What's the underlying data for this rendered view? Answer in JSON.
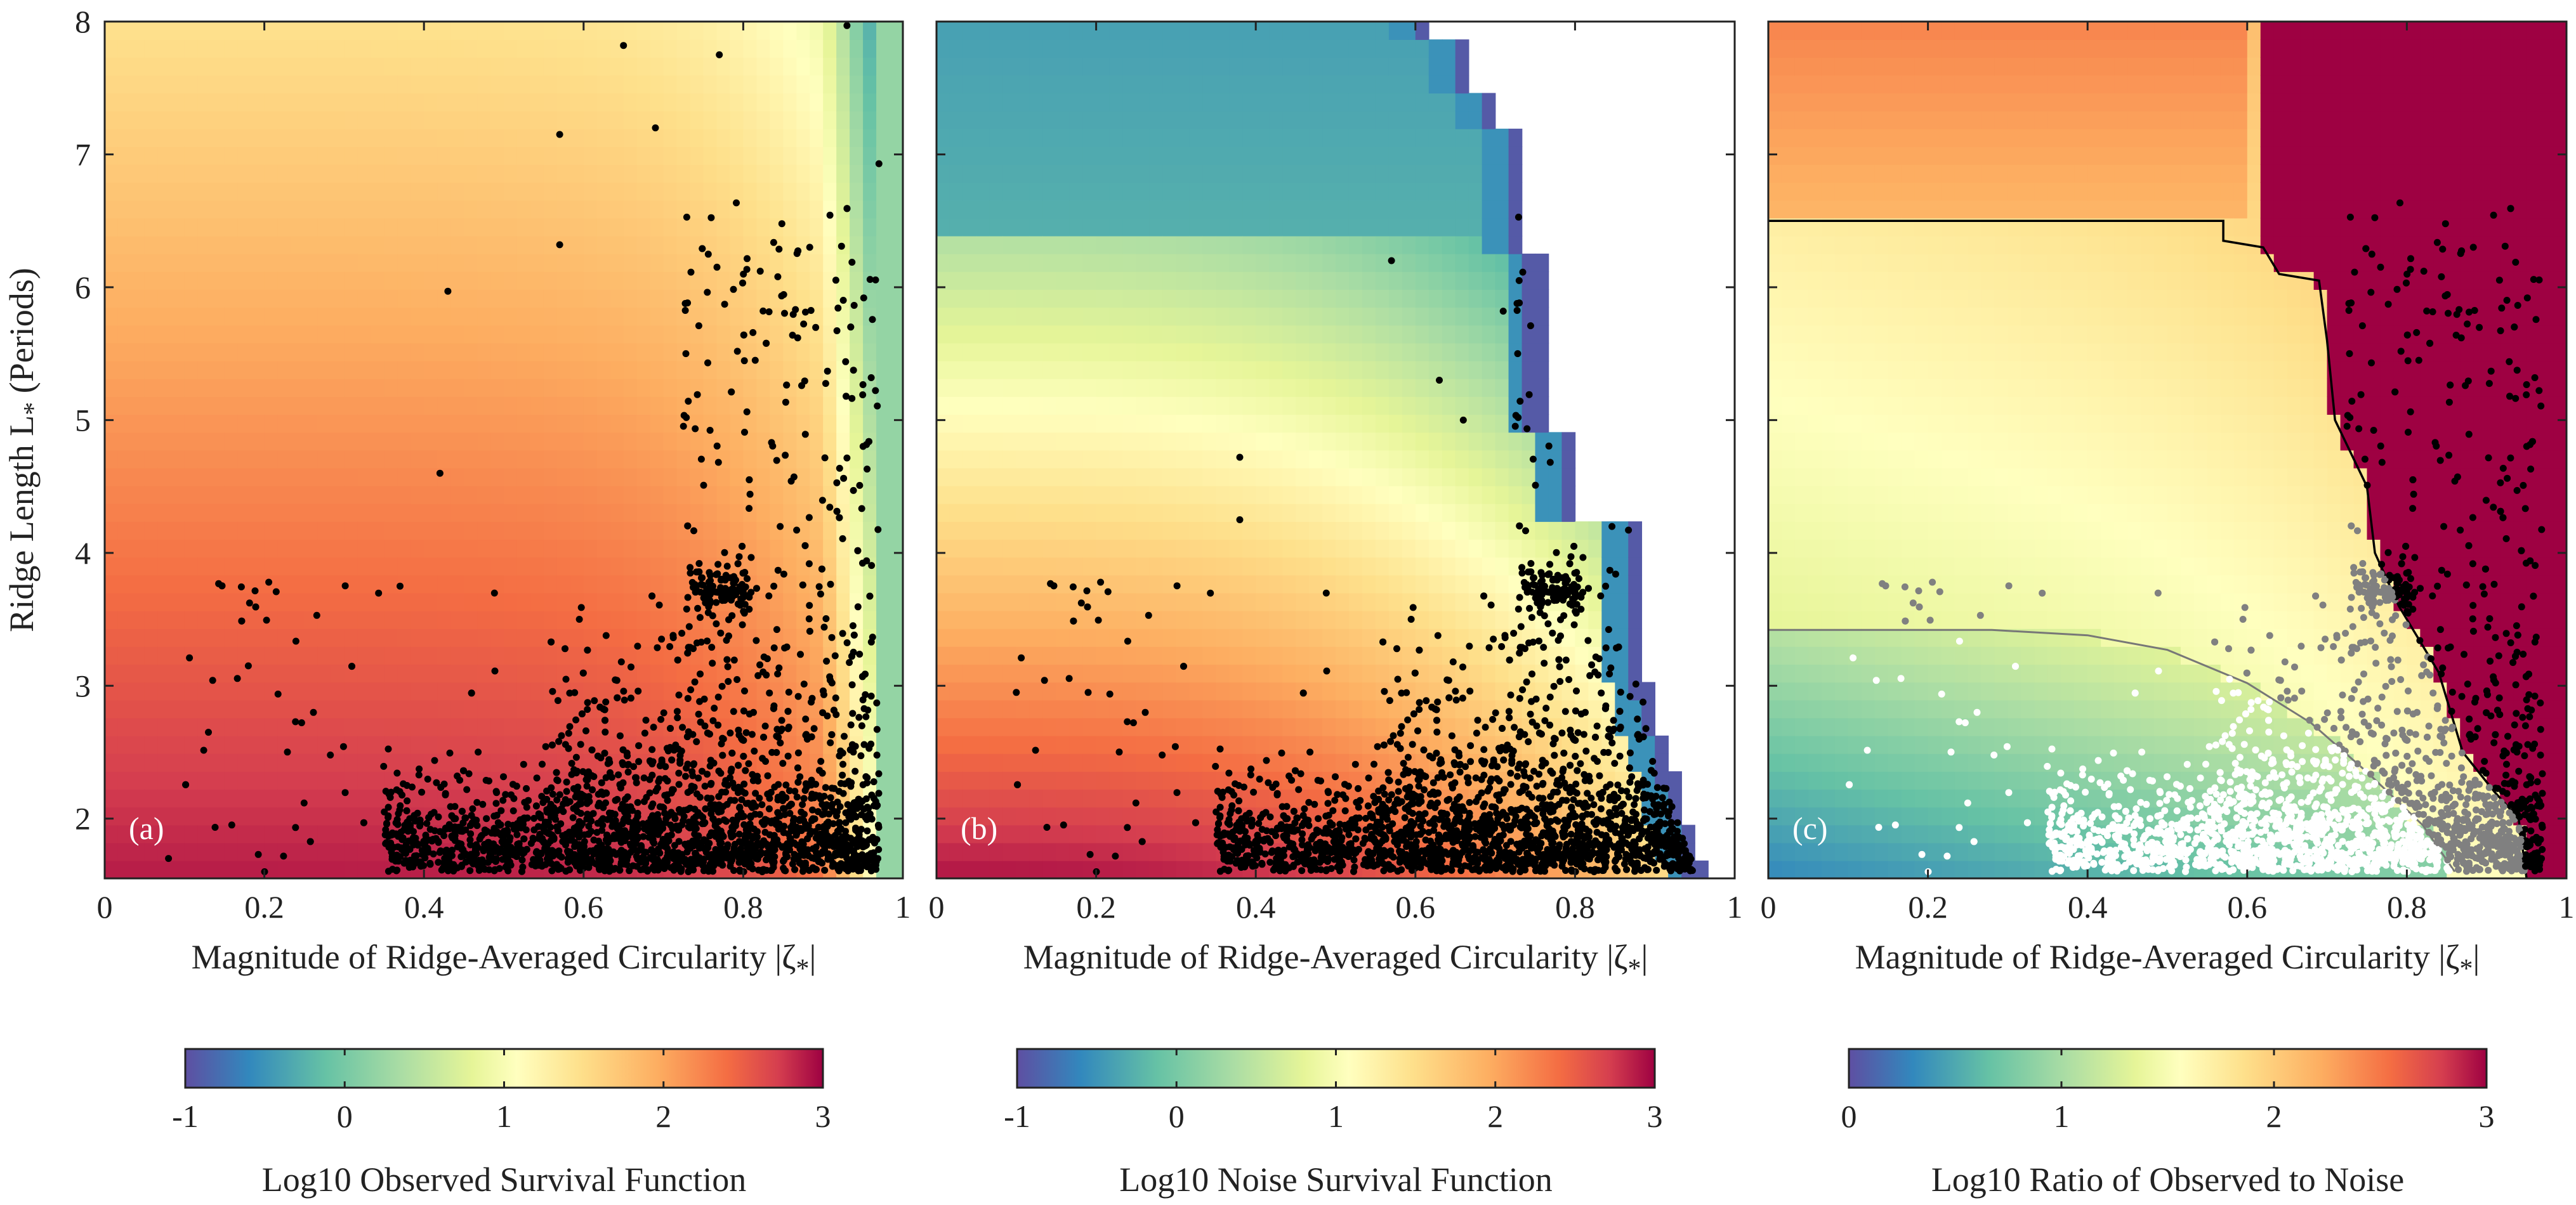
{
  "chart_data": [
    {
      "type": "scatter",
      "panel_label": "(a)",
      "xlabel": "Magnitude of Ridge-Averaged Circularity |ζ",
      "xlabel_sub": "*",
      "xlabel_tail": "|",
      "ylabel": "Ridge Length L",
      "ylabel_sub": "*",
      "ylabel_tail": " (Periods)",
      "xlim": [
        0,
        1
      ],
      "ylim": [
        1.55,
        8
      ],
      "xticks": [
        0,
        0.2,
        0.4,
        0.6,
        0.8,
        1
      ],
      "xtick_labels": [
        "0",
        "0.2",
        "0.4",
        "0.6",
        "0.8",
        "1"
      ],
      "yticks": [
        2,
        3,
        4,
        5,
        6,
        7,
        8
      ],
      "ytick_labels": [
        "2",
        "3",
        "4",
        "5",
        "6",
        "7",
        "8"
      ],
      "background": "Log10 observed survival function (colormap)",
      "colorbar": {
        "label": "Log10 Observed Survival Function",
        "range": [
          -1,
          3
        ],
        "ticks": [
          -1,
          0,
          1,
          2,
          3
        ],
        "tick_labels": [
          "-1",
          "0",
          "1",
          "2",
          "3"
        ]
      },
      "scatter_color": "#000000",
      "notable_points": [
        {
          "x": 0.08,
          "y": 1.7
        },
        {
          "x": 0.13,
          "y": 2.65
        },
        {
          "x": 0.18,
          "y": 3.15
        },
        {
          "x": 0.37,
          "y": 3.75
        },
        {
          "x": 0.42,
          "y": 4.6
        },
        {
          "x": 0.43,
          "y": 5.97
        },
        {
          "x": 0.57,
          "y": 6.32
        },
        {
          "x": 0.57,
          "y": 7.15
        },
        {
          "x": 0.65,
          "y": 7.82
        },
        {
          "x": 0.69,
          "y": 7.2
        },
        {
          "x": 0.77,
          "y": 7.75
        },
        {
          "x": 0.93,
          "y": 7.97
        },
        {
          "x": 0.97,
          "y": 6.93
        },
        {
          "x": 0.78,
          "y": 3.9
        }
      ]
    },
    {
      "type": "scatter",
      "panel_label": "(b)",
      "xlabel": "Magnitude of Ridge-Averaged Circularity |ζ",
      "xlabel_sub": "*",
      "xlabel_tail": "|",
      "xlim": [
        0,
        1
      ],
      "ylim": [
        1.55,
        8
      ],
      "xticks": [
        0,
        0.2,
        0.4,
        0.6,
        0.8,
        1
      ],
      "xtick_labels": [
        "0",
        "0.2",
        "0.4",
        "0.6",
        "0.8",
        "1"
      ],
      "yticks": [
        2,
        3,
        4,
        5,
        6,
        7,
        8
      ],
      "background": "Log10 noise survival function (colormap); undefined region at upper right left blank",
      "colorbar": {
        "label": "Log10 Noise Survival Function",
        "range": [
          -1,
          3
        ],
        "ticks": [
          -1,
          0,
          1,
          2,
          3
        ],
        "tick_labels": [
          "-1",
          "0",
          "1",
          "2",
          "3"
        ]
      },
      "scatter_color": "#000000",
      "notable_points": [
        {
          "x": 0.1,
          "y": 2.95
        },
        {
          "x": 0.19,
          "y": 2.95
        },
        {
          "x": 0.38,
          "y": 4.72
        },
        {
          "x": 0.38,
          "y": 4.25
        },
        {
          "x": 0.57,
          "y": 6.2
        },
        {
          "x": 0.63,
          "y": 5.3
        },
        {
          "x": 0.66,
          "y": 5.0
        },
        {
          "x": 0.71,
          "y": 5.82
        },
        {
          "x": 0.73,
          "y": 6.05
        }
      ]
    },
    {
      "type": "scatter",
      "panel_label": "(c)",
      "xlabel": "Magnitude of Ridge-Averaged Circularity |ζ",
      "xlabel_sub": "*",
      "xlabel_tail": "|",
      "xlim": [
        0,
        1
      ],
      "ylim": [
        1.55,
        8
      ],
      "xticks": [
        0,
        0.2,
        0.4,
        0.6,
        0.8,
        1
      ],
      "xtick_labels": [
        "0",
        "0.2",
        "0.4",
        "0.6",
        "0.8",
        "1"
      ],
      "yticks": [
        2,
        3,
        4,
        5,
        6,
        7,
        8
      ],
      "background": "Log10 ratio of observed to noise (colormap)",
      "colorbar": {
        "label": "Log10 Ratio of Observed to Noise",
        "range": [
          0,
          3
        ],
        "ticks": [
          0,
          1,
          2,
          3
        ],
        "tick_labels": [
          "0",
          "1",
          "2",
          "3"
        ]
      },
      "contours": [
        {
          "color": "#000000",
          "points": [
            [
              0,
              6.5
            ],
            [
              0.57,
              6.5
            ],
            [
              0.57,
              6.35
            ],
            [
              0.62,
              6.3
            ],
            [
              0.64,
              6.1
            ],
            [
              0.69,
              6.05
            ],
            [
              0.7,
              5.6
            ],
            [
              0.71,
              5.0
            ],
            [
              0.75,
              4.5
            ],
            [
              0.76,
              4.0
            ],
            [
              0.79,
              3.6
            ],
            [
              0.84,
              3.1
            ],
            [
              0.87,
              2.5
            ],
            [
              0.91,
              2.2
            ],
            [
              0.94,
              2.0
            ],
            [
              0.95,
              1.55
            ]
          ]
        },
        {
          "color": "#777777",
          "points": [
            [
              0,
              3.42
            ],
            [
              0.28,
              3.42
            ],
            [
              0.4,
              3.38
            ],
            [
              0.5,
              3.27
            ],
            [
              0.6,
              3.02
            ],
            [
              0.68,
              2.72
            ],
            [
              0.75,
              2.35
            ],
            [
              0.82,
              1.95
            ],
            [
              0.86,
              1.6
            ]
          ]
        }
      ],
      "scatter_series": [
        {
          "color": "#000000",
          "region": "above black contour"
        },
        {
          "color": "#808080",
          "region": "between contours"
        },
        {
          "color": "#ffffff",
          "region": "below gray contour"
        }
      ]
    }
  ]
}
